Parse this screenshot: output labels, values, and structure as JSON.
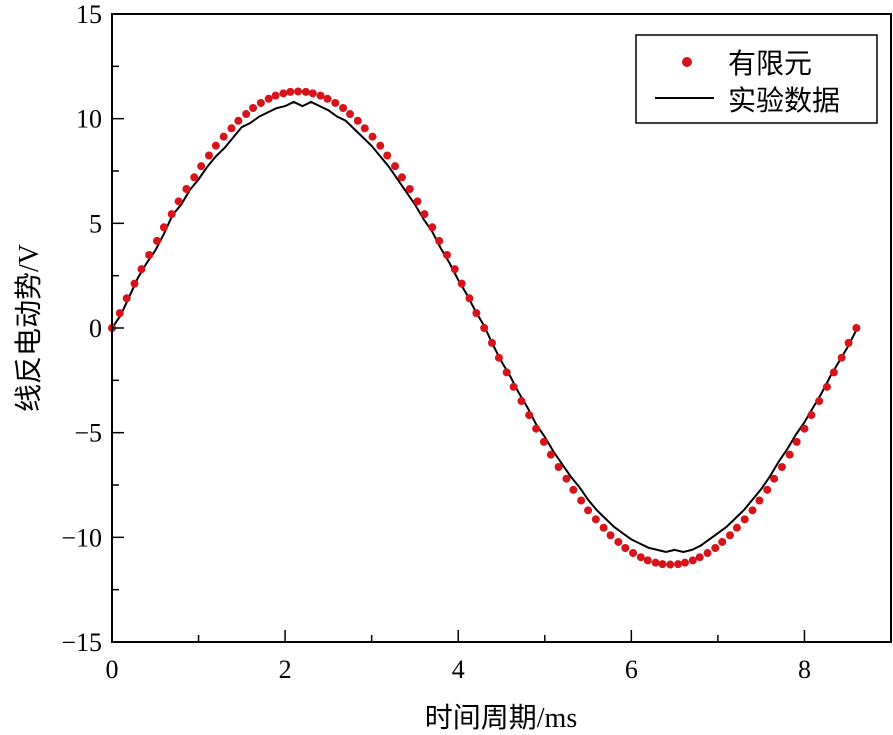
{
  "chart_data": {
    "type": "line",
    "title": "",
    "xlabel": "时间周期/ms",
    "ylabel": "线反电动势/V",
    "xlim": [
      0,
      9
    ],
    "ylim": [
      -15,
      15
    ],
    "xticks": [
      0,
      2,
      4,
      6,
      8
    ],
    "yticks": [
      -15,
      -10,
      -5,
      0,
      5,
      10,
      15
    ],
    "xtick_labels": [
      "0",
      "2",
      "4",
      "6",
      "8"
    ],
    "ytick_labels": [
      "−15",
      "−10",
      "−5",
      "0",
      "5",
      "10",
      "15"
    ],
    "grid": false,
    "legend_position": "top-right",
    "series": [
      {
        "name": "有限元",
        "style": "markers",
        "color": "#d7141b",
        "x": [
          0,
          0.09,
          0.17,
          0.26,
          0.34,
          0.43,
          0.52,
          0.6,
          0.69,
          0.77,
          0.86,
          0.95,
          1.03,
          1.12,
          1.2,
          1.29,
          1.38,
          1.46,
          1.55,
          1.63,
          1.72,
          1.81,
          1.89,
          1.98,
          2.06,
          2.15,
          2.24,
          2.32,
          2.41,
          2.49,
          2.58,
          2.67,
          2.75,
          2.84,
          2.92,
          3.01,
          3.1,
          3.18,
          3.27,
          3.35,
          3.44,
          3.53,
          3.61,
          3.7,
          3.78,
          3.87,
          3.96,
          4.04,
          4.13,
          4.21,
          4.3,
          4.39,
          4.47,
          4.56,
          4.64,
          4.73,
          4.82,
          4.9,
          4.99,
          5.07,
          5.16,
          5.25,
          5.33,
          5.42,
          5.5,
          5.59,
          5.68,
          5.76,
          5.85,
          5.93,
          6.02,
          6.11,
          6.19,
          6.28,
          6.36,
          6.45,
          6.54,
          6.62,
          6.71,
          6.79,
          6.88,
          6.97,
          7.05,
          7.14,
          7.22,
          7.31,
          7.4,
          7.48,
          7.57,
          7.65,
          7.74,
          7.83,
          7.91,
          8.0,
          8.08,
          8.17,
          8.26,
          8.34,
          8.43,
          8.51,
          8.6
        ],
        "y": [
          0,
          0.71,
          1.42,
          2.12,
          2.81,
          3.49,
          4.16,
          4.81,
          5.44,
          6.05,
          6.64,
          7.2,
          7.73,
          8.24,
          8.71,
          9.14,
          9.54,
          9.9,
          10.22,
          10.51,
          10.75,
          10.95,
          11.1,
          11.21,
          11.28,
          11.3,
          11.28,
          11.21,
          11.1,
          10.95,
          10.75,
          10.51,
          10.22,
          9.9,
          9.54,
          9.14,
          8.71,
          8.24,
          7.73,
          7.2,
          6.64,
          6.05,
          5.44,
          4.81,
          4.16,
          3.49,
          2.81,
          2.12,
          1.42,
          0.71,
          0,
          -0.71,
          -1.42,
          -2.12,
          -2.81,
          -3.49,
          -4.16,
          -4.81,
          -5.44,
          -6.05,
          -6.64,
          -7.2,
          -7.73,
          -8.24,
          -8.71,
          -9.14,
          -9.54,
          -9.9,
          -10.22,
          -10.51,
          -10.75,
          -10.95,
          -11.1,
          -11.21,
          -11.28,
          -11.3,
          -11.28,
          -11.21,
          -11.1,
          -10.95,
          -10.75,
          -10.51,
          -10.22,
          -9.9,
          -9.54,
          -9.14,
          -8.71,
          -8.24,
          -7.73,
          -7.2,
          -6.64,
          -6.05,
          -5.44,
          -4.81,
          -4.16,
          -3.49,
          -2.81,
          -2.12,
          -1.42,
          -0.71,
          0
        ]
      },
      {
        "name": "实验数据",
        "style": "line",
        "color": "#000000",
        "x": [
          0,
          0.1,
          0.2,
          0.3,
          0.4,
          0.5,
          0.6,
          0.7,
          0.8,
          0.9,
          1.0,
          1.1,
          1.2,
          1.3,
          1.4,
          1.5,
          1.6,
          1.7,
          1.8,
          1.9,
          2.0,
          2.1,
          2.2,
          2.3,
          2.4,
          2.5,
          2.6,
          2.7,
          2.8,
          2.9,
          3.0,
          3.1,
          3.2,
          3.3,
          3.4,
          3.5,
          3.6,
          3.7,
          3.8,
          3.9,
          4.0,
          4.1,
          4.2,
          4.3,
          4.4,
          4.5,
          4.6,
          4.7,
          4.8,
          4.9,
          5.0,
          5.1,
          5.2,
          5.3,
          5.4,
          5.5,
          5.6,
          5.7,
          5.8,
          5.9,
          6.0,
          6.1,
          6.2,
          6.3,
          6.4,
          6.5,
          6.6,
          6.7,
          6.8,
          6.9,
          7.0,
          7.1,
          7.2,
          7.3,
          7.4,
          7.5,
          7.6,
          7.7,
          7.8,
          7.9,
          8.0,
          8.1,
          8.2,
          8.3,
          8.4,
          8.5,
          8.6
        ],
        "y": [
          0,
          0.6,
          1.5,
          2.4,
          3.1,
          3.7,
          4.5,
          5.4,
          5.9,
          6.6,
          7.1,
          7.7,
          8.2,
          8.6,
          9.1,
          9.6,
          9.8,
          10.1,
          10.3,
          10.5,
          10.6,
          10.8,
          10.6,
          10.8,
          10.6,
          10.4,
          10.1,
          9.9,
          9.5,
          9.1,
          8.7,
          8.2,
          7.7,
          7.1,
          6.5,
          5.9,
          5.2,
          4.6,
          3.8,
          3.1,
          2.3,
          1.6,
          0.8,
          0.1,
          -0.8,
          -1.6,
          -2.3,
          -3.1,
          -3.8,
          -4.6,
          -5.2,
          -5.9,
          -6.5,
          -7.1,
          -7.6,
          -8.2,
          -8.7,
          -9.1,
          -9.5,
          -9.8,
          -10.1,
          -10.3,
          -10.5,
          -10.6,
          -10.7,
          -10.6,
          -10.7,
          -10.6,
          -10.4,
          -10.1,
          -9.8,
          -9.5,
          -9.1,
          -8.7,
          -8.2,
          -7.7,
          -7.1,
          -6.4,
          -5.8,
          -5.1,
          -4.5,
          -3.8,
          -3.1,
          -2.3,
          -1.6,
          -0.9,
          -0.1
        ]
      }
    ]
  }
}
